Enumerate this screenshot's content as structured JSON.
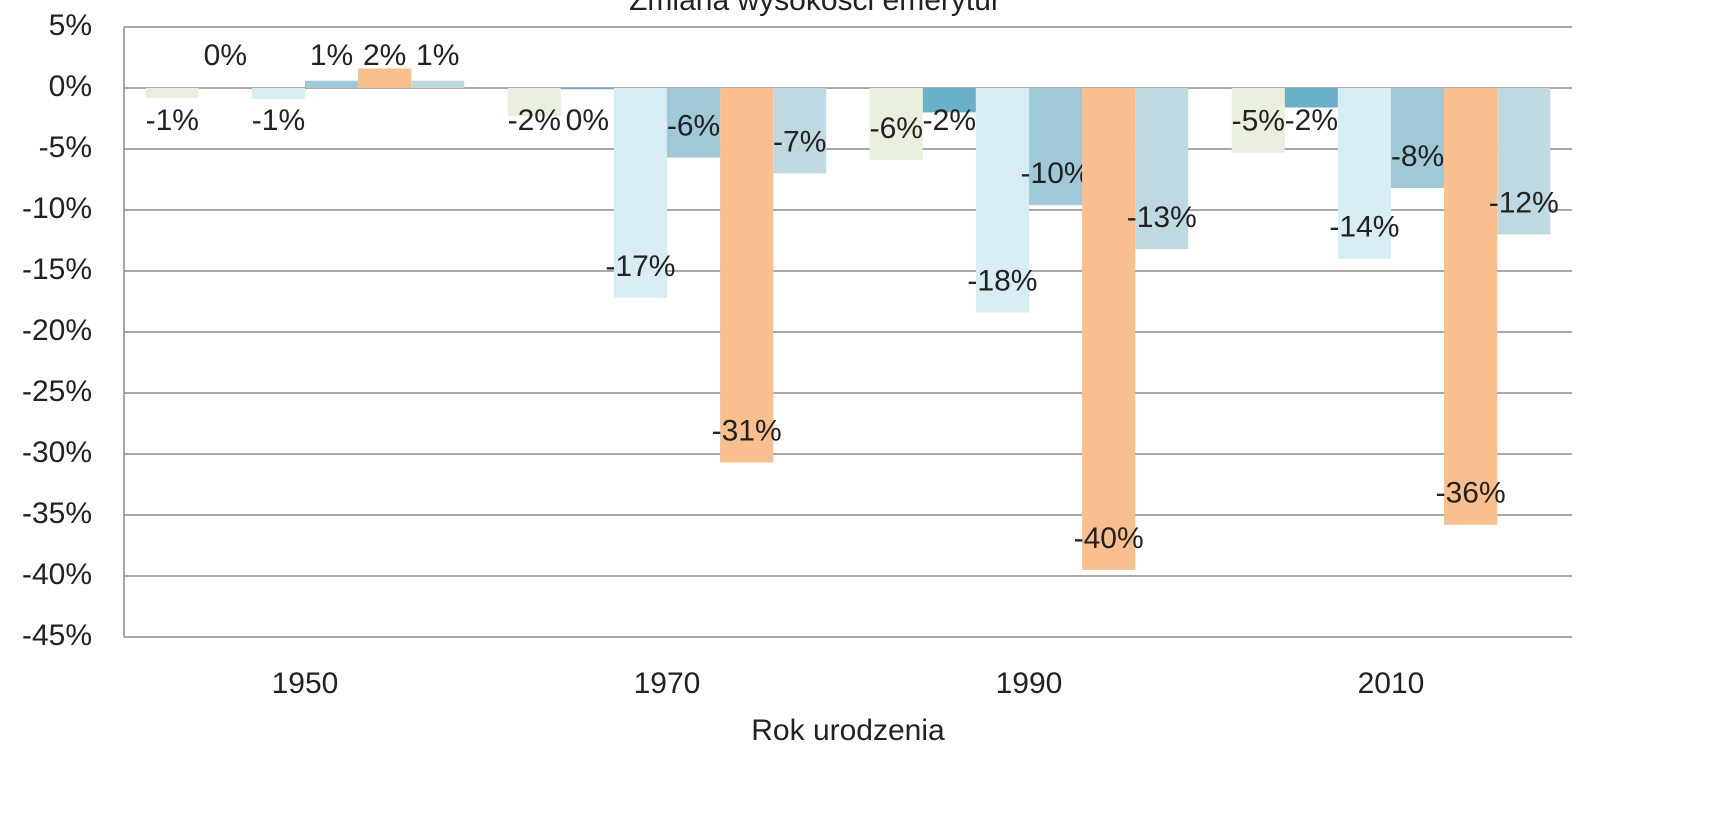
{
  "chart_data": {
    "type": "bar",
    "title": "Zmiana wysokości emerytur",
    "x_label": "Rok urodzenia",
    "categories": [
      "1950",
      "1970",
      "1990",
      "2010"
    ],
    "series": [
      {
        "color": "#e9efdd",
        "values": [
          -0.8,
          -2.3,
          -5.9,
          -5.3
        ],
        "value_labels": [
          "-1%",
          "-2%",
          "-6%",
          "-5%"
        ]
      },
      {
        "color": "#6ab0c8",
        "values": [
          0,
          -0.1,
          -2.0,
          -1.6
        ],
        "value_labels": [
          "0%",
          "0%",
          "-2%",
          "-2%"
        ]
      },
      {
        "color": "#d8ecf3",
        "values": [
          -0.9,
          -17.2,
          -18.4,
          -14.0
        ],
        "value_labels": [
          "-1%",
          "-17%",
          "-18%",
          "-14%"
        ]
      },
      {
        "color": "#9fc8d8",
        "values": [
          0.6,
          -5.7,
          -9.6,
          -8.2
        ],
        "value_labels": [
          "1%",
          "-6%",
          "-10%",
          "-8%"
        ]
      },
      {
        "color": "#f9bf8f",
        "values": [
          1.6,
          -30.7,
          -39.5,
          -35.8
        ],
        "value_labels": [
          "2%",
          "-31%",
          "-40%",
          "-36%"
        ]
      },
      {
        "color": "#bfd9e3",
        "values": [
          0.6,
          -7.0,
          -13.2,
          -12.0
        ],
        "value_labels": [
          "1%",
          "-7%",
          "-13%",
          "-12%"
        ]
      }
    ],
    "ylim": [
      -45,
      5
    ],
    "yticks": [
      {
        "value": 5,
        "label": "5%"
      },
      {
        "value": 0,
        "label": "0%"
      },
      {
        "value": -5,
        "label": "-5%"
      },
      {
        "value": -10,
        "label": "-10%"
      },
      {
        "value": -15,
        "label": "-15%"
      },
      {
        "value": -20,
        "label": "-20%"
      },
      {
        "value": -25,
        "label": "-25%"
      },
      {
        "value": -30,
        "label": "-30%"
      },
      {
        "value": -35,
        "label": "-35%"
      },
      {
        "value": -40,
        "label": "-40%"
      },
      {
        "value": -45,
        "label": "-45%"
      }
    ],
    "grid": true
  }
}
